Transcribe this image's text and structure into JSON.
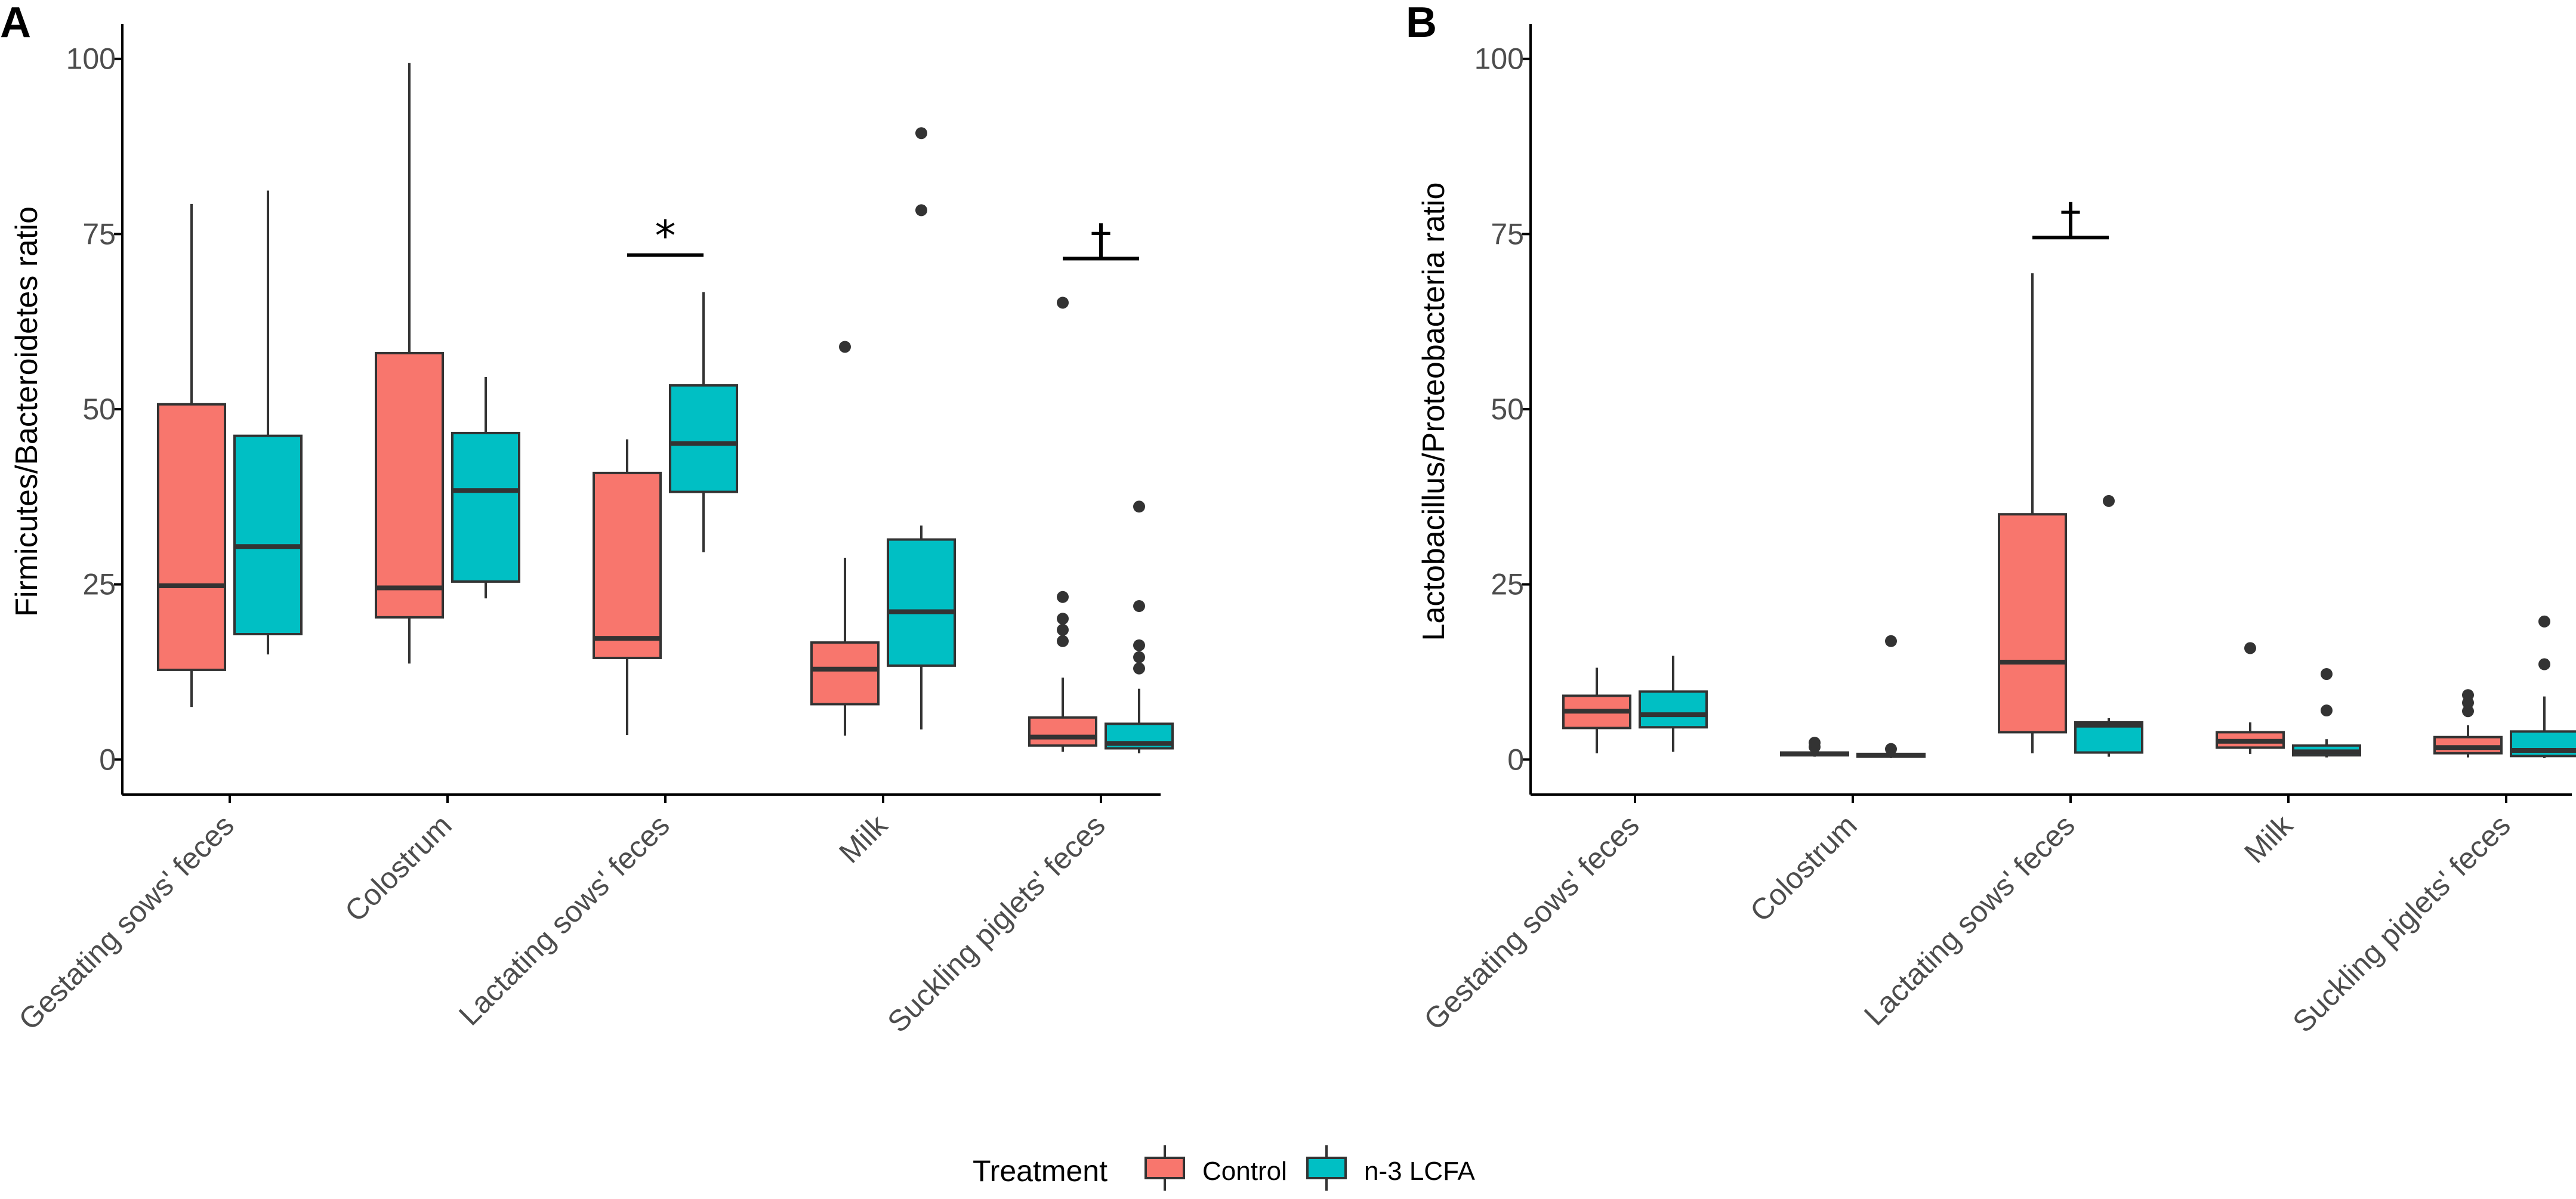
{
  "colors": {
    "control": "#F8766D",
    "n3": "#00BFC4",
    "line": "#333333",
    "axis": "#000000"
  },
  "legend": {
    "title": "Treatment",
    "items": [
      "Control",
      "n-3 LCFA"
    ]
  },
  "chart_data": [
    {
      "panel": "A",
      "type": "box",
      "ylabel": "Firmicutes/Bacteroidetes ratio",
      "ylim": [
        -5,
        105
      ],
      "yticks": [
        0,
        25,
        50,
        75,
        100
      ],
      "categories": [
        "Gestating sows' feces",
        "Colostrum",
        "Lactating sows' feces",
        "Milk",
        "Suckling piglets' feces"
      ],
      "series": [
        {
          "name": "Control",
          "boxes": [
            {
              "whisker_low": 7.5,
              "q1": 12.8,
              "median": 24.8,
              "q3": 50.7,
              "whisker_high": 79.3,
              "outliers": []
            },
            {
              "whisker_low": 13.7,
              "q1": 20.3,
              "median": 24.5,
              "q3": 58.0,
              "whisker_high": 99.4,
              "outliers": []
            },
            {
              "whisker_low": 3.5,
              "q1": 14.5,
              "median": 17.3,
              "q3": 40.9,
              "whisker_high": 45.7,
              "outliers": []
            },
            {
              "whisker_low": 3.4,
              "q1": 7.9,
              "median": 12.9,
              "q3": 16.7,
              "whisker_high": 28.8,
              "outliers": [
                58.9
              ]
            },
            {
              "whisker_low": 1.1,
              "q1": 2.0,
              "median": 3.2,
              "q3": 6.0,
              "whisker_high": 11.7,
              "outliers": [
                16.9,
                18.5,
                20.1,
                23.2,
                65.2
              ]
            }
          ]
        },
        {
          "name": "n-3 LCFA",
          "boxes": [
            {
              "whisker_low": 15.0,
              "q1": 17.9,
              "median": 30.4,
              "q3": 46.2,
              "whisker_high": 81.2,
              "outliers": []
            },
            {
              "whisker_low": 23.0,
              "q1": 25.4,
              "median": 38.4,
              "q3": 46.6,
              "whisker_high": 54.6,
              "outliers": []
            },
            {
              "whisker_low": 29.6,
              "q1": 38.2,
              "median": 45.1,
              "q3": 53.4,
              "whisker_high": 66.7,
              "outliers": []
            },
            {
              "whisker_low": 4.3,
              "q1": 13.4,
              "median": 21.1,
              "q3": 31.4,
              "whisker_high": 33.4,
              "outliers": [
                78.4,
                89.4
              ]
            },
            {
              "whisker_low": 0.9,
              "q1": 1.6,
              "median": 2.3,
              "q3": 5.1,
              "whisker_high": 10.1,
              "outliers": [
                13.0,
                14.6,
                16.3,
                21.9,
                36.1
              ]
            }
          ]
        }
      ],
      "annotations": [
        {
          "label": "*",
          "category_index": 2,
          "y": 72
        },
        {
          "label": "†",
          "category_index": 4,
          "y": 71.5
        }
      ]
    },
    {
      "panel": "B",
      "type": "box",
      "ylabel": "Lactobacillus/Proteobacteria ratio",
      "ylim": [
        -5,
        105
      ],
      "yticks": [
        0,
        25,
        50,
        75,
        100
      ],
      "categories": [
        "Gestating sows' feces",
        "Colostrum",
        "Lactating sows' feces",
        "Milk",
        "Suckling piglets' feces"
      ],
      "series": [
        {
          "name": "Control",
          "boxes": [
            {
              "whisker_low": 0.9,
              "q1": 4.5,
              "median": 6.9,
              "q3": 9.1,
              "whisker_high": 13.1,
              "outliers": []
            },
            {
              "whisker_low": 0.4,
              "q1": 0.6,
              "median": 0.8,
              "q3": 1.0,
              "whisker_high": 1.3,
              "outliers": [
                1.8,
                2.4
              ]
            },
            {
              "whisker_low": 0.9,
              "q1": 3.9,
              "median": 13.9,
              "q3": 35.0,
              "whisker_high": 69.4,
              "outliers": []
            },
            {
              "whisker_low": 0.8,
              "q1": 1.7,
              "median": 2.6,
              "q3": 3.9,
              "whisker_high": 5.3,
              "outliers": [
                15.9
              ]
            },
            {
              "whisker_low": 0.3,
              "q1": 0.9,
              "median": 1.7,
              "q3": 3.2,
              "whisker_high": 4.9,
              "outliers": [
                6.9,
                8.1,
                9.2
              ]
            }
          ]
        },
        {
          "name": "n-3 LCFA",
          "boxes": [
            {
              "whisker_low": 1.1,
              "q1": 4.6,
              "median": 6.4,
              "q3": 9.7,
              "whisker_high": 14.8,
              "outliers": []
            },
            {
              "whisker_low": 0.2,
              "q1": 0.4,
              "median": 0.6,
              "q3": 0.8,
              "whisker_high": 1.0,
              "outliers": [
                1.5,
                16.9
              ]
            },
            {
              "whisker_low": 0.4,
              "q1": 1.0,
              "median": 4.9,
              "q3": 5.3,
              "whisker_high": 5.9,
              "outliers": [
                36.9
              ]
            },
            {
              "whisker_low": 0.3,
              "q1": 0.6,
              "median": 1.1,
              "q3": 2.0,
              "whisker_high": 2.9,
              "outliers": [
                7.0,
                12.2
              ]
            },
            {
              "whisker_low": 0.2,
              "q1": 0.5,
              "median": 1.3,
              "q3": 4.0,
              "whisker_high": 9.0,
              "outliers": [
                13.6,
                19.7
              ]
            }
          ]
        }
      ],
      "annotations": [
        {
          "label": "†",
          "category_index": 2,
          "y": 74.5
        }
      ]
    }
  ]
}
